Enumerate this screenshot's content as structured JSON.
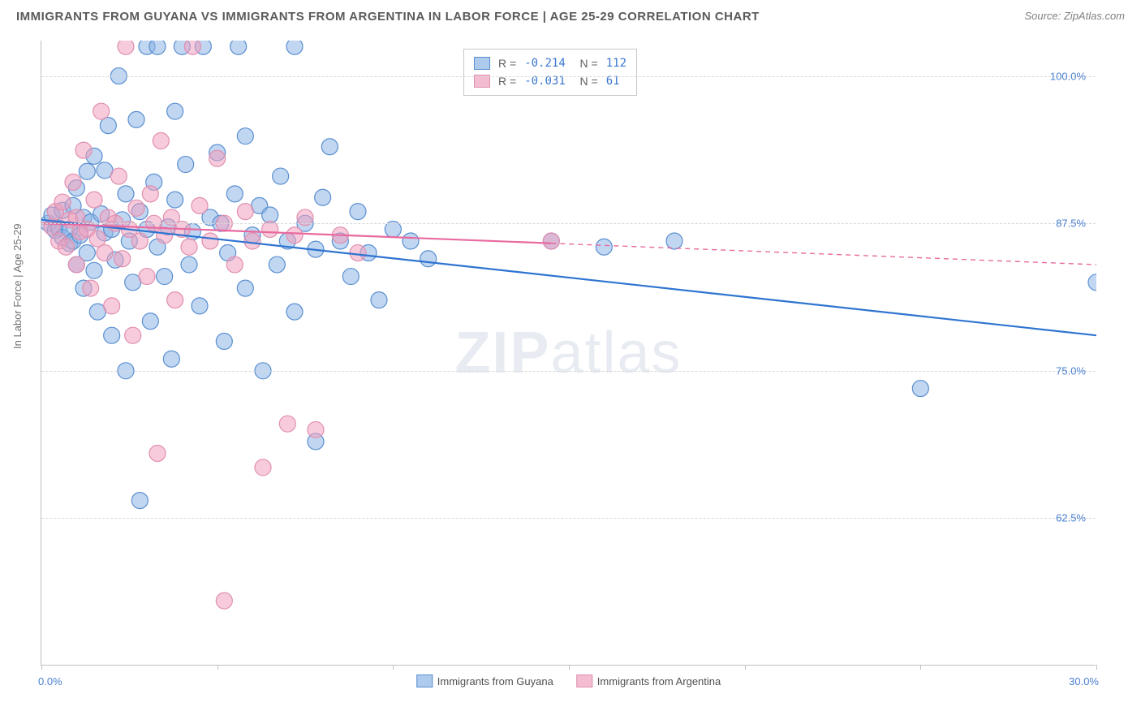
{
  "header": {
    "title": "IMMIGRANTS FROM GUYANA VS IMMIGRANTS FROM ARGENTINA IN LABOR FORCE | AGE 25-29 CORRELATION CHART",
    "source": "Source: ZipAtlas.com"
  },
  "watermark": {
    "text1": "ZIP",
    "text2": "atlas"
  },
  "chart": {
    "type": "scatter-correlation",
    "ylabel": "In Labor Force | Age 25-29",
    "xlim": [
      0,
      30
    ],
    "ylim": [
      50,
      103
    ],
    "x_axis_labels": {
      "left": "0.0%",
      "right": "30.0%"
    },
    "ytick_labels": [
      "62.5%",
      "75.0%",
      "87.5%",
      "100.0%"
    ],
    "ytick_values": [
      62.5,
      75.0,
      87.5,
      100.0
    ],
    "xtick_positions": [
      0,
      5,
      10,
      15,
      20,
      25,
      30
    ],
    "grid_color": "#d8d8d8",
    "border_color": "#c0c0c0",
    "tick_label_color": "#4a7fd0",
    "axis_label_color": "#707070",
    "series": [
      {
        "name": "Immigrants from Guyana",
        "marker_fill": "rgba(140,180,230,0.55)",
        "marker_stroke": "#5a8fd0",
        "marker_r": 10,
        "line_color": "#2e74d0",
        "line_width": 2.2,
        "regression": {
          "x1": 0,
          "y1": 87.8,
          "x2": 30,
          "y2": 78.0,
          "solid_until": 30
        },
        "R": "-0.214",
        "N": "112",
        "points": [
          [
            0.2,
            87.5
          ],
          [
            0.3,
            88.2
          ],
          [
            0.4,
            86.9
          ],
          [
            0.5,
            87.1
          ],
          [
            0.6,
            86.3
          ],
          [
            0.6,
            88.6
          ],
          [
            0.8,
            87.0
          ],
          [
            0.8,
            85.8
          ],
          [
            0.9,
            89.0
          ],
          [
            0.9,
            86.0
          ],
          [
            1.0,
            84.0
          ],
          [
            1.0,
            90.5
          ],
          [
            1.1,
            86.5
          ],
          [
            1.2,
            88.0
          ],
          [
            1.2,
            82.0
          ],
          [
            1.3,
            91.9
          ],
          [
            1.3,
            85.0
          ],
          [
            1.4,
            87.6
          ],
          [
            1.5,
            93.2
          ],
          [
            1.5,
            83.5
          ],
          [
            1.6,
            80.0
          ],
          [
            1.7,
            88.3
          ],
          [
            1.8,
            92.0
          ],
          [
            1.8,
            86.7
          ],
          [
            1.9,
            95.8
          ],
          [
            2.0,
            78.0
          ],
          [
            2.0,
            87.0
          ],
          [
            2.1,
            84.4
          ],
          [
            2.2,
            100.0
          ],
          [
            2.3,
            87.8
          ],
          [
            2.4,
            75.0
          ],
          [
            2.4,
            90.0
          ],
          [
            2.5,
            86.0
          ],
          [
            2.6,
            82.5
          ],
          [
            2.7,
            96.3
          ],
          [
            2.8,
            64.0
          ],
          [
            2.8,
            88.5
          ],
          [
            3.0,
            102.5
          ],
          [
            3.0,
            87.0
          ],
          [
            3.1,
            79.2
          ],
          [
            3.2,
            91.0
          ],
          [
            3.3,
            85.5
          ],
          [
            3.3,
            102.5
          ],
          [
            3.5,
            83.0
          ],
          [
            3.6,
            87.2
          ],
          [
            3.7,
            76.0
          ],
          [
            3.8,
            97.0
          ],
          [
            3.8,
            89.5
          ],
          [
            4.0,
            102.5
          ],
          [
            4.1,
            92.5
          ],
          [
            4.2,
            84.0
          ],
          [
            4.3,
            86.8
          ],
          [
            4.5,
            80.5
          ],
          [
            4.6,
            102.5
          ],
          [
            4.8,
            88.0
          ],
          [
            5.0,
            93.5
          ],
          [
            5.1,
            87.5
          ],
          [
            5.2,
            77.5
          ],
          [
            5.3,
            85.0
          ],
          [
            5.5,
            90.0
          ],
          [
            5.6,
            102.5
          ],
          [
            5.8,
            82.0
          ],
          [
            5.8,
            94.9
          ],
          [
            6.0,
            86.5
          ],
          [
            6.2,
            89.0
          ],
          [
            6.3,
            75.0
          ],
          [
            6.5,
            88.2
          ],
          [
            6.7,
            84.0
          ],
          [
            6.8,
            91.5
          ],
          [
            7.0,
            86.0
          ],
          [
            7.2,
            80.0
          ],
          [
            7.2,
            102.5
          ],
          [
            7.5,
            87.5
          ],
          [
            7.8,
            85.3
          ],
          [
            7.8,
            69.0
          ],
          [
            8.0,
            89.7
          ],
          [
            8.2,
            94.0
          ],
          [
            8.5,
            86.0
          ],
          [
            8.8,
            83.0
          ],
          [
            9.0,
            88.5
          ],
          [
            9.3,
            85.0
          ],
          [
            9.6,
            81.0
          ],
          [
            10.0,
            87.0
          ],
          [
            10.5,
            86.0
          ],
          [
            11.0,
            84.5
          ],
          [
            14.5,
            86.0
          ],
          [
            16.0,
            85.5
          ],
          [
            18.0,
            86.0
          ],
          [
            25.0,
            73.5
          ],
          [
            30.0,
            82.5
          ]
        ]
      },
      {
        "name": "Immigrants from Argentina",
        "marker_fill": "rgba(240,160,190,0.55)",
        "marker_stroke": "#e08fb0",
        "marker_r": 10,
        "line_color": "#e86aa0",
        "line_width": 2.2,
        "regression": {
          "x1": 0,
          "y1": 87.5,
          "x2": 30,
          "y2": 84.0,
          "solid_until": 14.5
        },
        "R": "-0.031",
        "N": " 61",
        "points": [
          [
            0.3,
            87.2
          ],
          [
            0.4,
            88.5
          ],
          [
            0.5,
            86.0
          ],
          [
            0.6,
            89.3
          ],
          [
            0.7,
            85.5
          ],
          [
            0.8,
            87.8
          ],
          [
            0.9,
            91.0
          ],
          [
            1.0,
            84.0
          ],
          [
            1.0,
            88.0
          ],
          [
            1.1,
            86.8
          ],
          [
            1.2,
            93.7
          ],
          [
            1.3,
            87.0
          ],
          [
            1.4,
            82.0
          ],
          [
            1.5,
            89.5
          ],
          [
            1.6,
            86.2
          ],
          [
            1.7,
            97.0
          ],
          [
            1.8,
            85.0
          ],
          [
            1.9,
            88.0
          ],
          [
            2.0,
            80.5
          ],
          [
            2.1,
            87.5
          ],
          [
            2.2,
            91.5
          ],
          [
            2.3,
            84.5
          ],
          [
            2.4,
            102.5
          ],
          [
            2.5,
            87.0
          ],
          [
            2.6,
            78.0
          ],
          [
            2.7,
            88.8
          ],
          [
            2.8,
            86.0
          ],
          [
            3.0,
            83.0
          ],
          [
            3.1,
            90.0
          ],
          [
            3.2,
            87.5
          ],
          [
            3.3,
            68.0
          ],
          [
            3.4,
            94.5
          ],
          [
            3.5,
            86.5
          ],
          [
            3.7,
            88.0
          ],
          [
            3.8,
            81.0
          ],
          [
            4.0,
            87.0
          ],
          [
            4.2,
            85.5
          ],
          [
            4.3,
            102.5
          ],
          [
            4.5,
            89.0
          ],
          [
            4.8,
            86.0
          ],
          [
            5.0,
            93.0
          ],
          [
            5.2,
            87.5
          ],
          [
            5.2,
            55.5
          ],
          [
            5.5,
            84.0
          ],
          [
            5.8,
            88.5
          ],
          [
            6.0,
            86.0
          ],
          [
            6.3,
            66.8
          ],
          [
            6.5,
            87.0
          ],
          [
            7.0,
            70.5
          ],
          [
            7.2,
            86.5
          ],
          [
            7.5,
            88.0
          ],
          [
            7.8,
            70.0
          ],
          [
            8.5,
            86.5
          ],
          [
            9.0,
            85.0
          ],
          [
            14.5,
            86.0
          ]
        ]
      }
    ],
    "legend_bottom": [
      {
        "label": "Immigrants from Guyana",
        "fill": "rgba(140,180,230,0.7)",
        "stroke": "#5a8fd0"
      },
      {
        "label": "Immigrants from Argentina",
        "fill": "rgba(240,160,190,0.7)",
        "stroke": "#e08fb0"
      }
    ]
  }
}
